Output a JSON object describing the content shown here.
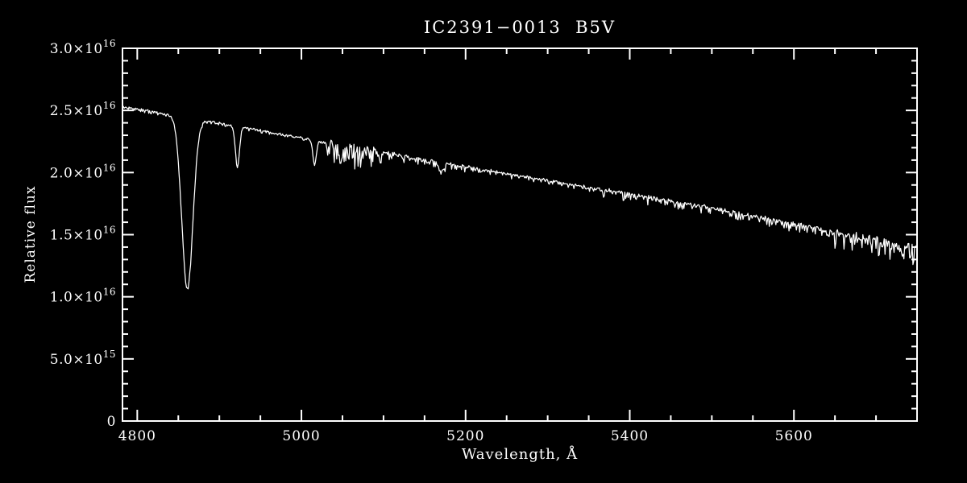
{
  "colors": {
    "background": "#000000",
    "foreground": "#ffffff"
  },
  "chart_data": {
    "type": "line",
    "title": "IC2391−0013  B5V",
    "xlabel": "Wavelength, Å",
    "ylabel": "Relative flux",
    "xlim": [
      4782,
      5750
    ],
    "ylim": [
      0,
      3e+16
    ],
    "grid": false,
    "legend": false,
    "flux_unit": 1e+16,
    "x_major_ticks": [
      4800,
      5000,
      5200,
      5400,
      5600
    ],
    "x_tick_labels": [
      "4800",
      "5000",
      "5200",
      "5400",
      "5600"
    ],
    "x_minor_step": 50,
    "y_major_ticks": [
      0,
      5000000000000000.0,
      1e+16,
      1.5e+16,
      2e+16,
      2.5e+16,
      3e+16
    ],
    "y_tick_labels": [
      {
        "text": "0",
        "sup": ""
      },
      {
        "text": "5.0×10",
        "sup": "15"
      },
      {
        "text": "1.0×10",
        "sup": "16"
      },
      {
        "text": "1.5×10",
        "sup": "16"
      },
      {
        "text": "2.0×10",
        "sup": "16"
      },
      {
        "text": "2.5×10",
        "sup": "16"
      },
      {
        "text": "3.0×10",
        "sup": "16"
      }
    ],
    "sampled_points": [
      [
        4782,
        2.52e+16
      ],
      [
        4800,
        2.5e+16
      ],
      [
        4830,
        2.42e+16
      ],
      [
        4845,
        2.22e+16
      ],
      [
        4861,
        1.07e+16
      ],
      [
        4877,
        2.26e+16
      ],
      [
        4890,
        2.37e+16
      ],
      [
        4910,
        2.38e+16
      ],
      [
        4922,
        2.04e+16
      ],
      [
        4935,
        2.35e+16
      ],
      [
        4960,
        2.33e+16
      ],
      [
        5000,
        2.28e+16
      ],
      [
        5016,
        2.06e+16
      ],
      [
        5048,
        2.1e+16
      ],
      [
        5075,
        2.16e+16
      ],
      [
        5100,
        2.16e+16
      ],
      [
        5140,
        2.11e+16
      ],
      [
        5170,
        2e+16
      ],
      [
        5200,
        2.04e+16
      ],
      [
        5250,
        1.99e+16
      ],
      [
        5300,
        1.94e+16
      ],
      [
        5350,
        1.88e+16
      ],
      [
        5400,
        1.83e+16
      ],
      [
        5450,
        1.77e+16
      ],
      [
        5500,
        1.72e+16
      ],
      [
        5550,
        1.66e+16
      ],
      [
        5600,
        1.6e+16
      ],
      [
        5650,
        1.53e+16
      ],
      [
        5700,
        1.46e+16
      ],
      [
        5750,
        1.4e+16
      ]
    ],
    "spectrum": {
      "sample_step": 1,
      "continuum_points": [
        [
          4782,
          2.535
        ],
        [
          4900,
          2.4
        ],
        [
          5200,
          2.05
        ],
        [
          5500,
          1.72
        ],
        [
          5750,
          1.4
        ]
      ],
      "absorption_lines": [
        {
          "center": 4861,
          "depth": 1.38,
          "sigma": 9.5
        },
        {
          "center": 4922,
          "depth": 0.33,
          "sigma": 3.5
        },
        {
          "center": 5016,
          "depth": 0.2,
          "sigma": 3.0
        },
        {
          "center": 5048,
          "depth": 0.12,
          "sigma": 3.0
        },
        {
          "center": 5170,
          "depth": 0.08,
          "sigma": 4.0
        }
      ],
      "noise_regions": [
        {
          "from": 4782,
          "to": 5030,
          "amp": 0.022
        },
        {
          "from": 5030,
          "to": 5100,
          "amp": 0.17
        },
        {
          "from": 5100,
          "to": 5200,
          "amp": 0.05
        },
        {
          "from": 5200,
          "to": 5360,
          "amp": 0.035
        },
        {
          "from": 5360,
          "to": 5560,
          "amp": 0.06
        },
        {
          "from": 5560,
          "to": 5645,
          "amp": 0.07
        },
        {
          "from": 5645,
          "to": 5751,
          "amp": 0.16
        }
      ],
      "noise_seed": 1234
    }
  }
}
